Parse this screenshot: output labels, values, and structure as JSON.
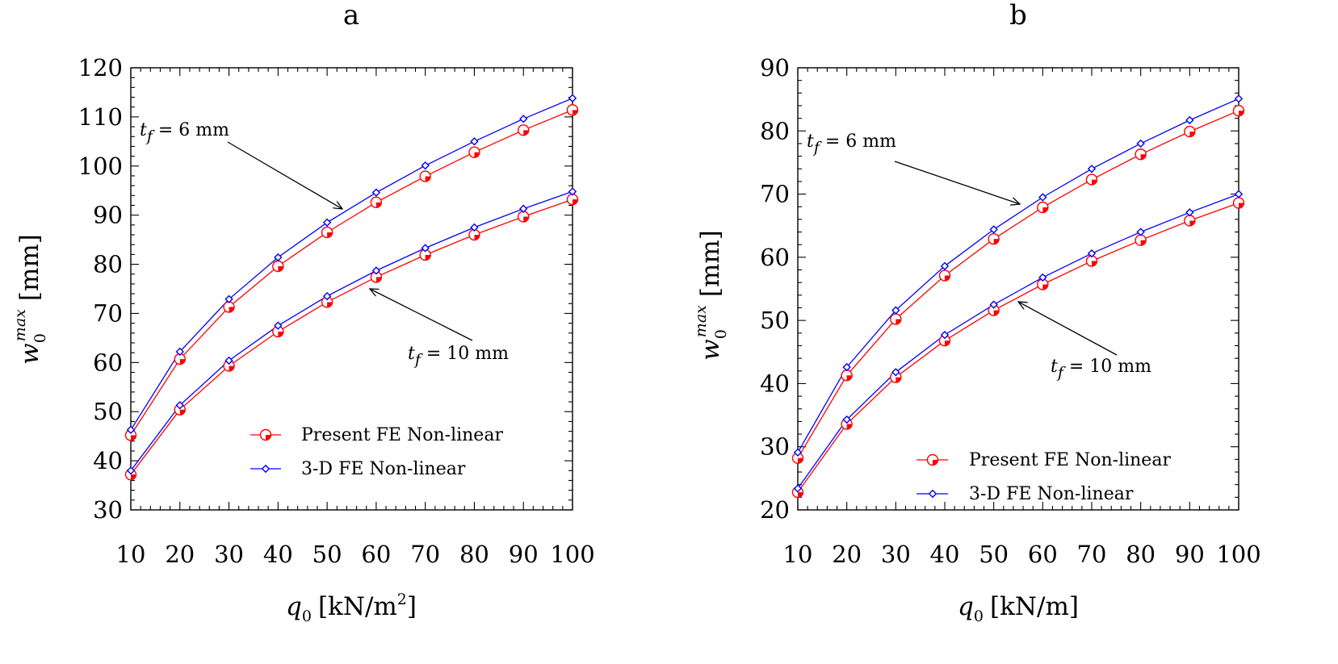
{
  "chart_data": [
    {
      "type": "line",
      "title": "a",
      "xlabel_var": "q",
      "xlabel_sub": "0",
      "xlabel_unit_pre": "[kN/m",
      "xlabel_unit_sup": "2",
      "xlabel_unit_post": "]",
      "ylabel_var": "w",
      "ylabel_sub": "0",
      "ylabel_sup": "max",
      "ylabel_unit": "[mm]",
      "xlim": [
        10,
        100
      ],
      "ylim": [
        30,
        120
      ],
      "xticks": [
        10,
        20,
        30,
        40,
        50,
        60,
        70,
        80,
        90,
        100
      ],
      "yticks": [
        30,
        40,
        50,
        60,
        70,
        80,
        90,
        100,
        110,
        120
      ],
      "legend": [
        {
          "label": "Present FE Non-linear",
          "color": "#ff0000",
          "marker": "half-filled-circle"
        },
        {
          "label": "3-D FE Non-linear",
          "color": "#0000ff",
          "marker": "diamond"
        }
      ],
      "annotations": [
        {
          "var": "t",
          "sub": "f",
          "text": " = 6 mm"
        },
        {
          "var": "t",
          "sub": "f",
          "text": " = 10 mm"
        }
      ],
      "x": [
        10,
        20,
        30,
        40,
        50,
        60,
        70,
        80,
        90,
        100
      ],
      "series": [
        {
          "name": "Present FE Non-linear, t_f = 6 mm",
          "color": "#ff0000",
          "marker": "circle",
          "values": [
            45.2,
            60.7,
            71.3,
            79.6,
            86.5,
            92.6,
            97.9,
            102.8,
            107.3,
            111.4
          ]
        },
        {
          "name": "3-D FE Non-linear, t_f = 6 mm",
          "color": "#0000ff",
          "marker": "diamond",
          "values": [
            46.3,
            62.2,
            72.9,
            81.4,
            88.5,
            94.6,
            100.1,
            105.0,
            109.6,
            113.8
          ]
        },
        {
          "name": "Present FE Non-linear, t_f = 10 mm",
          "color": "#ff0000",
          "marker": "circle",
          "values": [
            37.2,
            50.4,
            59.3,
            66.3,
            72.3,
            77.4,
            81.9,
            86.0,
            89.7,
            93.2
          ]
        },
        {
          "name": "3-D FE Non-linear, t_f = 10 mm",
          "color": "#0000ff",
          "marker": "diamond",
          "values": [
            38.0,
            51.3,
            60.4,
            67.5,
            73.5,
            78.7,
            83.3,
            87.5,
            91.3,
            94.8
          ]
        }
      ]
    },
    {
      "type": "line",
      "title": "b",
      "xlabel_var": "q",
      "xlabel_sub": "0",
      "xlabel_unit_pre": "[kN/m",
      "xlabel_unit_sup": "",
      "xlabel_unit_post": "]",
      "ylabel_var": "w",
      "ylabel_sub": "0",
      "ylabel_sup": "max",
      "ylabel_unit": "[mm]",
      "xlim": [
        10,
        100
      ],
      "ylim": [
        20,
        90
      ],
      "xticks": [
        10,
        20,
        30,
        40,
        50,
        60,
        70,
        80,
        90,
        100
      ],
      "yticks": [
        20,
        30,
        40,
        50,
        60,
        70,
        80,
        90
      ],
      "legend": [
        {
          "label": "Present FE Non-linear",
          "color": "#ff0000",
          "marker": "half-filled-circle"
        },
        {
          "label": "3-D FE Non-linear",
          "color": "#0000ff",
          "marker": "diamond"
        }
      ],
      "annotations": [
        {
          "var": "t",
          "sub": "f",
          "text": " = 6 mm"
        },
        {
          "var": "t",
          "sub": "f",
          "text": " = 10 mm"
        }
      ],
      "x": [
        10,
        20,
        30,
        40,
        50,
        60,
        70,
        80,
        90,
        100
      ],
      "series": [
        {
          "name": "Present FE Non-linear, t_f = 6 mm",
          "color": "#ff0000",
          "marker": "circle",
          "values": [
            28.2,
            41.3,
            50.2,
            57.1,
            62.9,
            67.9,
            72.3,
            76.3,
            79.9,
            83.2
          ]
        },
        {
          "name": "3-D FE Non-linear, t_f = 6 mm",
          "color": "#0000ff",
          "marker": "diamond",
          "values": [
            29.1,
            42.6,
            51.6,
            58.6,
            64.4,
            69.5,
            74.0,
            78.0,
            81.7,
            85.1
          ]
        },
        {
          "name": "Present FE Non-linear, t_f = 10 mm",
          "color": "#ff0000",
          "marker": "circle",
          "values": [
            22.8,
            33.6,
            41.0,
            46.8,
            51.6,
            55.7,
            59.4,
            62.7,
            65.8,
            68.6
          ]
        },
        {
          "name": "3-D FE Non-linear, t_f = 10 mm",
          "color": "#0000ff",
          "marker": "diamond",
          "values": [
            23.4,
            34.3,
            41.8,
            47.7,
            52.5,
            56.8,
            60.6,
            64.0,
            67.1,
            70.0
          ]
        }
      ]
    }
  ]
}
